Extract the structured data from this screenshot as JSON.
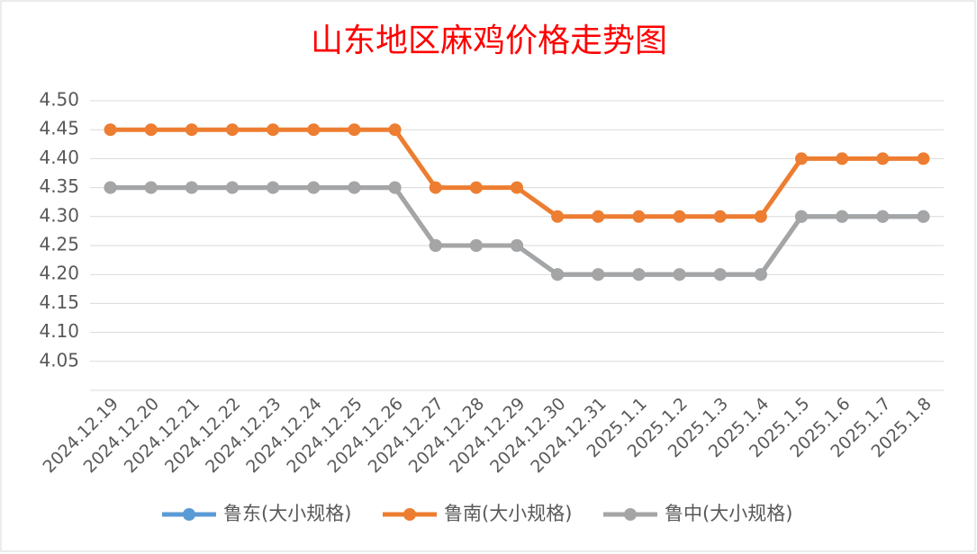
{
  "chart_data": {
    "type": "line",
    "title": "山东地区麻鸡价格走势图",
    "categories": [
      "2024.12.19",
      "2024.12.20",
      "2024.12.21",
      "2024.12.22",
      "2024.12.23",
      "2024.12.24",
      "2024.12.25",
      "2024.12.26",
      "2024.12.27",
      "2024.12.28",
      "2024.12.29",
      "2024.12.30",
      "2024.12.31",
      "2025.1.1",
      "2025.1.2",
      "2025.1.3",
      "2025.1.4",
      "2025.1.5",
      "2025.1.6",
      "2025.1.7",
      "2025.1.8"
    ],
    "series": [
      {
        "name": "鲁东(大小规格)",
        "color": "#5b9bd5",
        "values": [
          4.35,
          4.35,
          4.35,
          4.35,
          4.35,
          4.35,
          4.35,
          4.35,
          4.25,
          4.25,
          4.25,
          4.2,
          4.2,
          4.2,
          4.2,
          4.2,
          4.2,
          4.3,
          4.3,
          4.3,
          4.3
        ]
      },
      {
        "name": "鲁南(大小规格)",
        "color": "#ed7d31",
        "values": [
          4.45,
          4.45,
          4.45,
          4.45,
          4.45,
          4.45,
          4.45,
          4.45,
          4.35,
          4.35,
          4.35,
          4.3,
          4.3,
          4.3,
          4.3,
          4.3,
          4.3,
          4.4,
          4.4,
          4.4,
          4.4
        ]
      },
      {
        "name": "鲁中(大小规格)",
        "color": "#a5a5a5",
        "values": [
          4.35,
          4.35,
          4.35,
          4.35,
          4.35,
          4.35,
          4.35,
          4.35,
          4.25,
          4.25,
          4.25,
          4.2,
          4.2,
          4.2,
          4.2,
          4.2,
          4.2,
          4.3,
          4.3,
          4.3,
          4.3
        ]
      }
    ],
    "ylim": [
      4.0,
      4.5
    ],
    "yticks": [
      {
        "value": 4.05,
        "label": "4.05"
      },
      {
        "value": 4.1,
        "label": "4.10"
      },
      {
        "value": 4.15,
        "label": "4.15"
      },
      {
        "value": 4.2,
        "label": "4.20"
      },
      {
        "value": 4.25,
        "label": "4.25"
      },
      {
        "value": 4.3,
        "label": "4.30"
      },
      {
        "value": 4.35,
        "label": "4.35"
      },
      {
        "value": 4.4,
        "label": "4.40"
      },
      {
        "value": 4.45,
        "label": "4.45"
      },
      {
        "value": 4.5,
        "label": "4.50"
      }
    ],
    "grid": true,
    "legend": "bottom"
  }
}
